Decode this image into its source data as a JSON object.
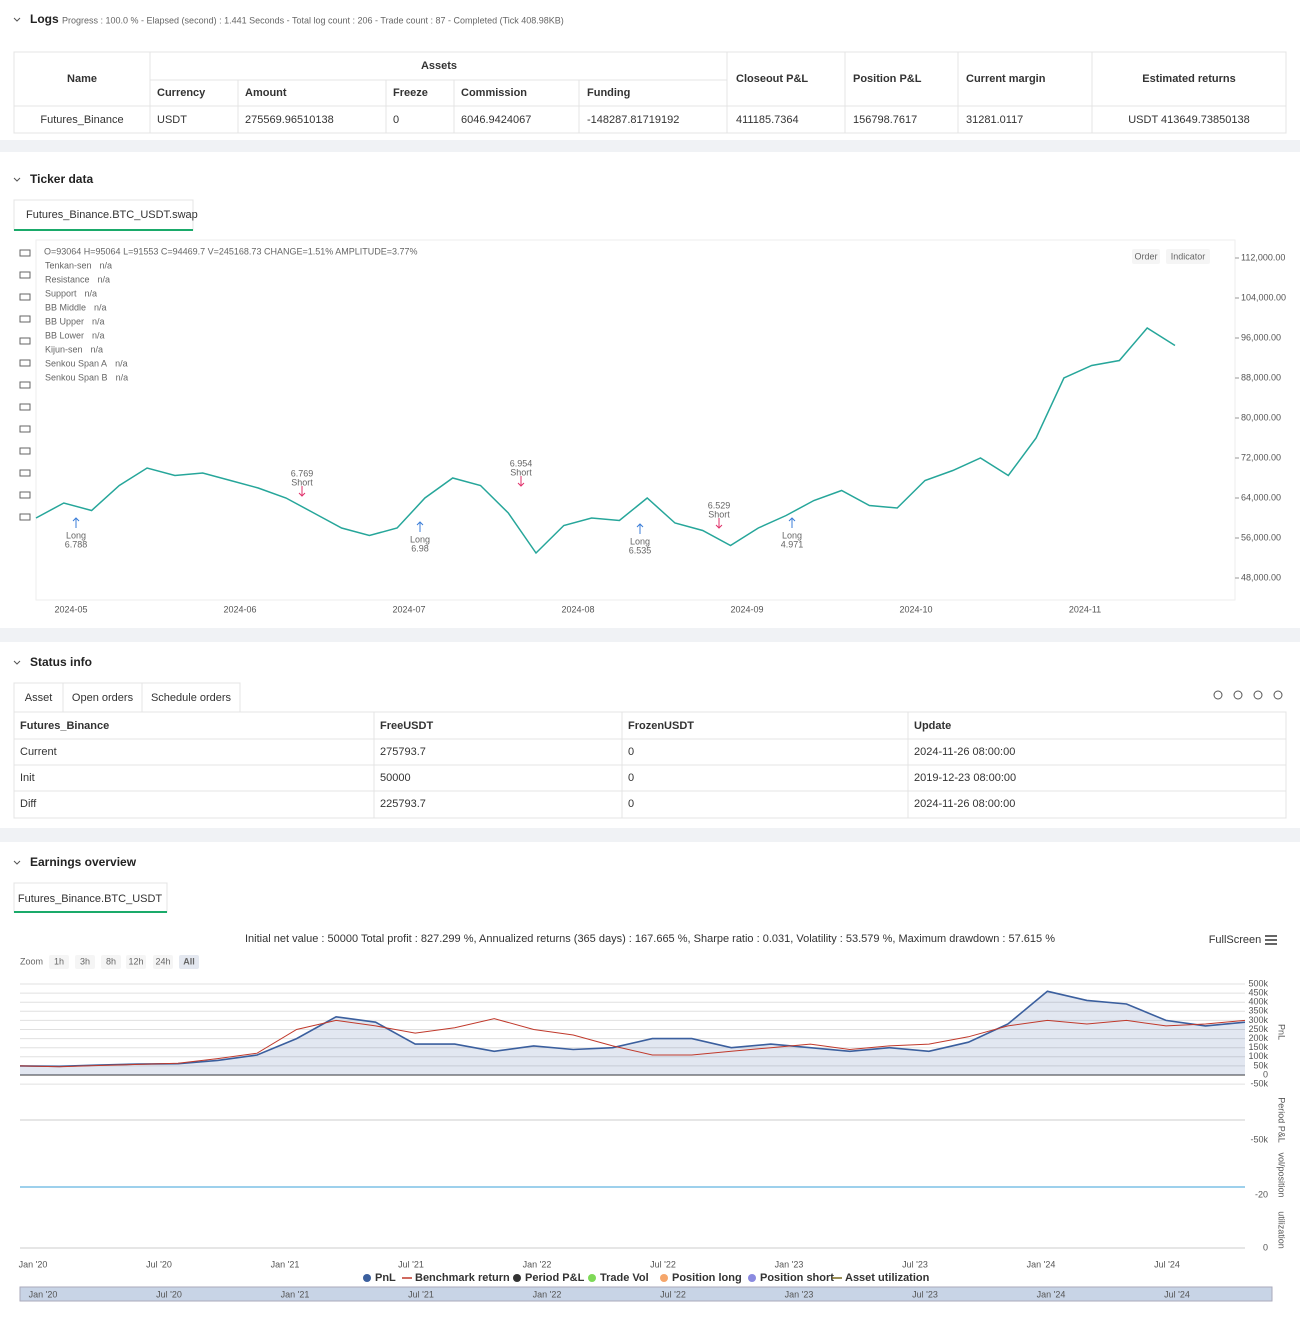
{
  "logs": {
    "title": "Logs",
    "progress": "Progress : 100.0 % - Elapsed (second) : 1.441 Seconds - Total log count : 206 - Trade count : 87 - Completed (Tick 408.98KB)",
    "table": {
      "headers": [
        "Name",
        "Assets",
        "Closeout P&L",
        "Position P&L",
        "Current margin",
        "Estimated returns"
      ],
      "subheaders": [
        "Currency",
        "Amount",
        "Freeze",
        "Commission",
        "Funding"
      ],
      "row": [
        "Futures_Binance",
        "USDT",
        "275569.96510138",
        "0",
        "6046.9424067",
        "-148287.81719192",
        "411185.7364",
        "156798.7617",
        "31281.0117",
        "USDT 413649.73850138"
      ]
    }
  },
  "ticker": {
    "title": "Ticker data",
    "tab": "Futures_Binance.BTC_USDT.swap",
    "ohlc": "O=93064 H=95064 L=91553 C=94469.7 V=245168.73 CHANGE=1.51% AMPLITUDE=3.77%",
    "buttons": [
      "Order",
      "Indicator"
    ],
    "legend": [
      {
        "name": "Tenkan-sen",
        "value": "n/a",
        "color": "#f0a020"
      },
      {
        "name": "Resistance",
        "value": "n/a",
        "color": "#9c5fc9"
      },
      {
        "name": "Support",
        "value": "n/a",
        "color": "#3b7dd8"
      },
      {
        "name": "BB Middle",
        "value": "n/a",
        "color": "#e0306a"
      },
      {
        "name": "BB Upper",
        "value": "n/a",
        "color": "#26a6b5"
      },
      {
        "name": "BB Lower",
        "value": "n/a",
        "color": "#f0a020"
      },
      {
        "name": "Kijun-sen",
        "value": "n/a",
        "color": "#9c5fc9"
      },
      {
        "name": "Senkou Span A",
        "value": "n/a",
        "color": "#3b7dd8"
      },
      {
        "name": "Senkou Span B",
        "value": "n/a",
        "color": "#e0306a"
      }
    ],
    "trades": [
      {
        "label": "Long",
        "size": "6.788"
      },
      {
        "label": "Short",
        "size": "6.769"
      },
      {
        "label": "Long",
        "size": "6.98"
      },
      {
        "label": "Short",
        "size": "6.954"
      },
      {
        "label": "Long",
        "size": "6.535"
      },
      {
        "label": "Short",
        "size": "6.529"
      },
      {
        "label": "Long",
        "size": "4.971"
      }
    ]
  },
  "status": {
    "title": "Status info",
    "tabs": [
      "Asset",
      "Open orders",
      "Schedule orders"
    ],
    "headers": [
      "Futures_Binance",
      "FreeUSDT",
      "FrozenUSDT",
      "Update"
    ],
    "rows": [
      [
        "Current",
        "275793.7",
        "0",
        "2024-11-26 08:00:00"
      ],
      [
        "Init",
        "50000",
        "0",
        "2019-12-23 08:00:00"
      ],
      [
        "Diff",
        "225793.7",
        "0",
        "2024-11-26 08:00:00"
      ]
    ]
  },
  "earnings": {
    "title": "Earnings overview",
    "tab": "Futures_Binance.BTC_USDT",
    "stats": "Initial net value : 50000 Total profit : 827.299 %, Annualized returns (365 days) : 167.665 %, Sharpe ratio : 0.031, Volatility : 53.579 %, Maximum drawdown : 57.615 %",
    "fullscreen": "FullScreen",
    "zoom": "Zoom",
    "zoom_buttons": [
      "1h",
      "3h",
      "8h",
      "12h",
      "24h",
      "All"
    ],
    "legend_extra": [
      {
        "name": "Period P&L",
        "color": "#333333"
      },
      {
        "name": "Trade Vol",
        "color": "#7ed957"
      },
      {
        "name": "Position long",
        "color": "#f5a66b"
      },
      {
        "name": "Position short",
        "color": "#8a8ae0"
      },
      {
        "name": "Asset utilization",
        "color": "#7a6a1f"
      }
    ],
    "panels": [
      {
        "title": "Period P&L",
        "tick": {
          "value": -50000,
          "label": "-50k"
        }
      },
      {
        "title": "vol/position",
        "tick": -20
      },
      {
        "title": "utilization",
        "tick": 0
      }
    ]
  },
  "chart_data": [
    {
      "type": "line",
      "ylim": [
        43600,
        115600
      ],
      "yticks": [
        {
          "value": 48000,
          "label": "48,000.00"
        },
        {
          "value": 56000,
          "label": "56,000.00"
        },
        {
          "value": 64000,
          "label": "64,000.00"
        },
        {
          "value": 72000,
          "label": "72,000.00"
        },
        {
          "value": 80000,
          "label": "80,000.00"
        },
        {
          "value": 88000,
          "label": "88,000.00"
        },
        {
          "value": 96000,
          "label": "96,000.00"
        },
        {
          "value": 104000,
          "label": "104,000.00"
        },
        {
          "value": 112000,
          "label": "112,000.00"
        }
      ],
      "xticks": [
        "2024-05",
        "2024-06",
        "2024-07",
        "2024-08",
        "2024-09",
        "2024-10",
        "2024-11"
      ],
      "series": [
        {
          "color": "#26a69a",
          "values": [
            60000,
            63000,
            61500,
            66500,
            70000,
            68500,
            69000,
            67500,
            66000,
            64000,
            61000,
            58000,
            56500,
            58000,
            64000,
            68000,
            66500,
            61000,
            53000,
            58500,
            60000,
            59500,
            64000,
            59000,
            57500,
            54500,
            58000,
            60500,
            63500,
            65500,
            62500,
            62000,
            67500,
            69500,
            72000,
            68500,
            76000,
            88000,
            90500,
            91500,
            98000,
            94500
          ]
        }
      ]
    },
    {
      "type": "line",
      "ylim": [
        -55000,
        522000
      ],
      "yticks": [
        {
          "value": 500000,
          "label": "500k"
        },
        {
          "value": 450000,
          "label": "450k"
        },
        {
          "value": 400000,
          "label": "400k"
        },
        {
          "value": 350000,
          "label": "350k"
        },
        {
          "value": 300000,
          "label": "300k"
        },
        {
          "value": 250000,
          "label": "250k"
        },
        {
          "value": 200000,
          "label": "200k"
        },
        {
          "value": 150000,
          "label": "150k"
        },
        {
          "value": 100000,
          "label": "100k"
        },
        {
          "value": 50000,
          "label": "50k"
        },
        0,
        {
          "value": -50000,
          "label": "-50k"
        }
      ],
      "xticks": [
        "Jan '20",
        "Jul '20",
        "Jan '21",
        "Jul '21",
        "Jan '22",
        "Jul '22",
        "Jan '23",
        "Jul '23",
        "Jan '24",
        "Jul '24"
      ],
      "ylabel": "PnL",
      "grid": true,
      "series": [
        {
          "name": "PnL",
          "color": "#3b5f9e",
          "values": [
            50000,
            48000,
            55000,
            60000,
            62000,
            80000,
            110000,
            200000,
            320000,
            290000,
            170000,
            170000,
            130000,
            160000,
            140000,
            150000,
            200000,
            200000,
            150000,
            170000,
            150000,
            130000,
            150000,
            130000,
            180000,
            280000,
            460000,
            410000,
            390000,
            300000,
            270000,
            290000
          ]
        },
        {
          "name": "Benchmark return",
          "color": "#c0392b",
          "values": [
            50000,
            45000,
            52000,
            58000,
            65000,
            90000,
            120000,
            250000,
            300000,
            270000,
            230000,
            260000,
            310000,
            250000,
            220000,
            160000,
            110000,
            110000,
            130000,
            150000,
            170000,
            140000,
            160000,
            170000,
            210000,
            270000,
            300000,
            280000,
            300000,
            270000,
            280000,
            300000
          ]
        }
      ]
    }
  ]
}
